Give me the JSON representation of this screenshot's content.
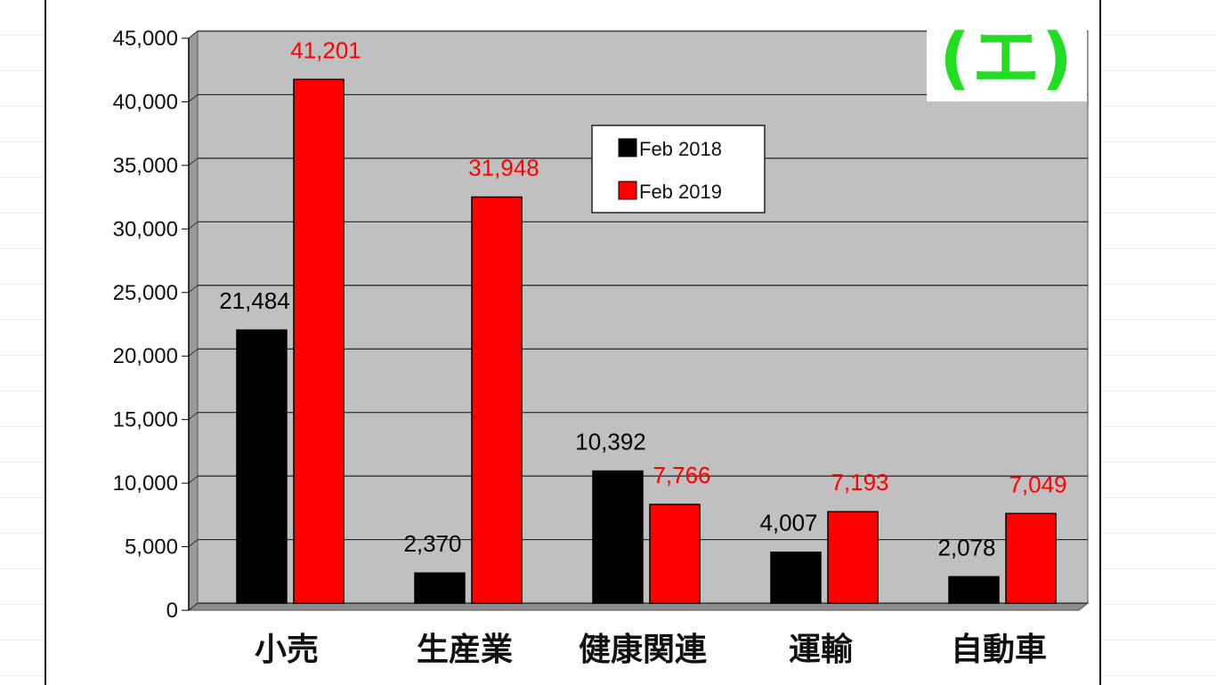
{
  "tag": "(エ)",
  "chart_data": {
    "type": "bar",
    "categories": [
      "小売",
      "生産業",
      "健康関連",
      "運輸",
      "自動車"
    ],
    "series": [
      {
        "name": "Feb 2018",
        "color": "#000000",
        "values": [
          21484,
          2370,
          10392,
          4007,
          2078
        ],
        "labels": [
          "21,484",
          "2,370",
          "10,392",
          "4,007",
          "2,078"
        ]
      },
      {
        "name": "Feb 2019",
        "color": "#ff0000",
        "values": [
          41201,
          31948,
          7766,
          7193,
          7049
        ],
        "labels": [
          "41,201",
          "31,948",
          "7,766",
          "7,193",
          "7,049"
        ]
      }
    ],
    "ylim": [
      0,
      45000
    ],
    "yticks": [
      "0",
      "5,000",
      "10,000",
      "15,000",
      "20,000",
      "25,000",
      "30,000",
      "35,000",
      "40,000",
      "45,000"
    ],
    "grid": true,
    "plot_background": "#c0c0c0",
    "label_colors": [
      "#000000",
      "#ff0000"
    ],
    "legend_position": "top-center"
  }
}
